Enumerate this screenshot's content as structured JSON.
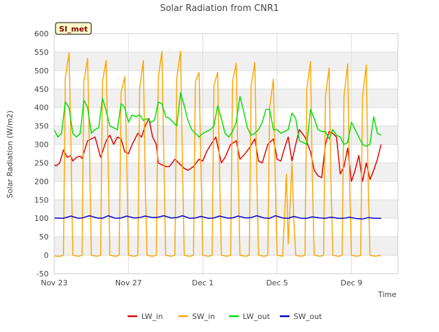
{
  "chart_data": {
    "type": "line",
    "title": "Solar Radiation from CNR1",
    "xlabel": "Time",
    "ylabel": "Solar Radiation (W/m2)",
    "badge": "SI_met",
    "ylim": [
      -50,
      600
    ],
    "yticks": [
      -50,
      0,
      50,
      100,
      150,
      200,
      250,
      300,
      350,
      400,
      450,
      500,
      550,
      600
    ],
    "xlim": [
      0,
      18.5
    ],
    "xticks": [
      {
        "value": 0,
        "label": "Nov 23"
      },
      {
        "value": 4,
        "label": "Nov 27"
      },
      {
        "value": 8,
        "label": "Dec 1"
      },
      {
        "value": 12,
        "label": "Dec 5"
      },
      {
        "value": 16,
        "label": "Dec 9"
      }
    ],
    "grid": true,
    "legend_position": "bottom",
    "series": [
      {
        "name": "LW_in",
        "color": "#e00000",
        "x": [
          0.0,
          0.1,
          0.3,
          0.5,
          0.7,
          0.9,
          1.0,
          1.2,
          1.4,
          1.5,
          1.8,
          2.0,
          2.2,
          2.5,
          2.8,
          3.0,
          3.2,
          3.4,
          3.6,
          3.8,
          4.0,
          4.2,
          4.5,
          4.7,
          4.9,
          5.0,
          5.1,
          5.3,
          5.5,
          5.6,
          5.8,
          6.0,
          6.2,
          6.5,
          6.8,
          7.0,
          7.2,
          7.5,
          7.8,
          8.0,
          8.2,
          8.5,
          8.7,
          9.0,
          9.2,
          9.5,
          9.8,
          10.0,
          10.2,
          10.5,
          10.8,
          11.0,
          11.2,
          11.5,
          11.8,
          12.0,
          12.2,
          12.4,
          12.6,
          12.8,
          13.0,
          13.2,
          13.5,
          13.8,
          14.0,
          14.2,
          14.4,
          14.6,
          14.8,
          15.0,
          15.2,
          15.4,
          15.6,
          15.8,
          16.0,
          16.2,
          16.4,
          16.6,
          16.8,
          17.0,
          17.2,
          17.4,
          17.6
        ],
        "y": [
          245,
          242,
          250,
          285,
          265,
          270,
          255,
          265,
          268,
          262,
          310,
          315,
          320,
          265,
          310,
          325,
          300,
          320,
          315,
          280,
          275,
          300,
          330,
          320,
          350,
          360,
          370,
          320,
          300,
          250,
          245,
          240,
          240,
          260,
          245,
          235,
          230,
          240,
          260,
          255,
          280,
          305,
          320,
          250,
          265,
          300,
          310,
          260,
          270,
          290,
          315,
          255,
          250,
          300,
          315,
          260,
          255,
          290,
          320,
          255,
          300,
          340,
          320,
          280,
          230,
          215,
          210,
          300,
          335,
          330,
          320,
          220,
          240,
          290,
          200,
          230,
          270,
          200,
          250,
          205,
          230,
          260,
          300
        ]
      },
      {
        "name": "SW_in",
        "color": "#ffa500",
        "x": [
          0.0,
          0.3,
          0.5,
          0.6,
          0.8,
          0.9,
          1.0,
          1.3,
          1.5,
          1.6,
          1.8,
          1.9,
          2.0,
          2.3,
          2.5,
          2.6,
          2.8,
          2.9,
          3.0,
          3.3,
          3.5,
          3.6,
          3.8,
          3.9,
          4.0,
          4.3,
          4.5,
          4.6,
          4.8,
          4.9,
          5.0,
          5.3,
          5.5,
          5.6,
          5.8,
          5.9,
          6.0,
          6.3,
          6.5,
          6.6,
          6.8,
          6.9,
          7.0,
          7.3,
          7.5,
          7.6,
          7.8,
          7.9,
          8.0,
          8.3,
          8.5,
          8.6,
          8.8,
          8.9,
          9.0,
          9.3,
          9.5,
          9.6,
          9.8,
          9.9,
          10.0,
          10.3,
          10.5,
          10.6,
          10.8,
          10.9,
          11.0,
          11.3,
          11.5,
          11.6,
          11.8,
          11.9,
          12.0,
          12.3,
          12.5,
          12.6,
          12.8,
          12.9,
          13.0,
          13.3,
          13.5,
          13.6,
          13.8,
          13.9,
          14.0,
          14.3,
          14.5,
          14.6,
          14.8,
          14.9,
          15.0,
          15.3,
          15.5,
          15.6,
          15.8,
          15.9,
          16.0,
          16.3,
          16.5,
          16.6,
          16.8,
          16.9,
          17.0,
          17.3,
          17.5,
          17.6
        ],
        "y": [
          -2,
          -3,
          0,
          480,
          548,
          300,
          0,
          -3,
          0,
          470,
          533,
          280,
          0,
          -3,
          0,
          470,
          528,
          270,
          0,
          -3,
          0,
          440,
          483,
          270,
          0,
          -3,
          0,
          450,
          527,
          200,
          0,
          -3,
          0,
          480,
          552,
          270,
          0,
          -3,
          0,
          480,
          552,
          260,
          0,
          -3,
          0,
          470,
          495,
          240,
          0,
          -3,
          0,
          460,
          495,
          230,
          0,
          -3,
          0,
          470,
          520,
          240,
          0,
          -3,
          0,
          460,
          522,
          230,
          0,
          -3,
          0,
          400,
          477,
          200,
          0,
          -3,
          220,
          30,
          250,
          100,
          0,
          -3,
          0,
          450,
          525,
          200,
          0,
          -3,
          0,
          430,
          507,
          200,
          0,
          -3,
          0,
          430,
          518,
          200,
          0,
          -3,
          0,
          430,
          515,
          200,
          0,
          -3,
          0,
          -2
        ]
      },
      {
        "name": "LW_out",
        "color": "#00e000",
        "x": [
          0.0,
          0.2,
          0.4,
          0.6,
          0.8,
          1.0,
          1.2,
          1.4,
          1.6,
          1.8,
          2.0,
          2.2,
          2.4,
          2.6,
          2.8,
          3.0,
          3.2,
          3.4,
          3.6,
          3.8,
          4.0,
          4.2,
          4.4,
          4.6,
          4.8,
          5.0,
          5.2,
          5.4,
          5.6,
          5.8,
          6.0,
          6.2,
          6.4,
          6.6,
          6.8,
          7.0,
          7.2,
          7.4,
          7.6,
          7.8,
          8.0,
          8.2,
          8.4,
          8.6,
          8.8,
          9.0,
          9.2,
          9.4,
          9.6,
          9.8,
          10.0,
          10.2,
          10.4,
          10.6,
          10.8,
          11.0,
          11.2,
          11.4,
          11.6,
          11.8,
          12.0,
          12.2,
          12.4,
          12.6,
          12.8,
          13.0,
          13.2,
          13.4,
          13.6,
          13.8,
          14.0,
          14.2,
          14.4,
          14.6,
          14.8,
          15.0,
          15.2,
          15.4,
          15.6,
          15.8,
          16.0,
          16.2,
          16.4,
          16.6,
          16.8,
          17.0,
          17.2,
          17.4,
          17.6
        ],
        "y": [
          340,
          320,
          330,
          415,
          400,
          330,
          320,
          330,
          420,
          400,
          330,
          340,
          345,
          425,
          390,
          350,
          345,
          340,
          410,
          400,
          360,
          380,
          375,
          380,
          365,
          370,
          360,
          365,
          415,
          410,
          375,
          370,
          360,
          350,
          440,
          405,
          365,
          340,
          330,
          320,
          330,
          335,
          340,
          350,
          405,
          370,
          330,
          320,
          335,
          360,
          430,
          390,
          345,
          325,
          330,
          340,
          360,
          395,
          395,
          340,
          340,
          330,
          335,
          340,
          385,
          370,
          310,
          305,
          300,
          395,
          370,
          340,
          335,
          335,
          315,
          340,
          325,
          320,
          300,
          305,
          360,
          340,
          320,
          300,
          295,
          300,
          375,
          330,
          325
        ]
      },
      {
        "name": "SW_out",
        "color": "#0000cc",
        "x": [
          0.0,
          0.5,
          0.9,
          1.3,
          1.5,
          1.9,
          2.3,
          2.6,
          2.9,
          3.3,
          3.6,
          3.9,
          4.3,
          4.6,
          4.9,
          5.3,
          5.6,
          5.9,
          6.3,
          6.6,
          6.9,
          7.3,
          7.6,
          7.9,
          8.3,
          8.6,
          8.9,
          9.3,
          9.6,
          9.9,
          10.3,
          10.6,
          10.9,
          11.3,
          11.6,
          11.9,
          12.3,
          12.6,
          12.9,
          13.3,
          13.6,
          13.9,
          14.3,
          14.6,
          14.9,
          15.3,
          15.6,
          15.9,
          16.3,
          16.6,
          16.9,
          17.3,
          17.6
        ],
        "y": [
          101,
          100,
          106,
          100,
          101,
          107,
          101,
          100,
          107,
          100,
          101,
          106,
          101,
          102,
          106,
          102,
          103,
          107,
          101,
          102,
          107,
          100,
          101,
          105,
          100,
          101,
          106,
          101,
          101,
          106,
          101,
          102,
          107,
          101,
          100,
          107,
          101,
          100,
          105,
          100,
          100,
          104,
          101,
          100,
          103,
          100,
          100,
          103,
          99,
          98,
          102,
          100,
          100
        ]
      }
    ]
  }
}
